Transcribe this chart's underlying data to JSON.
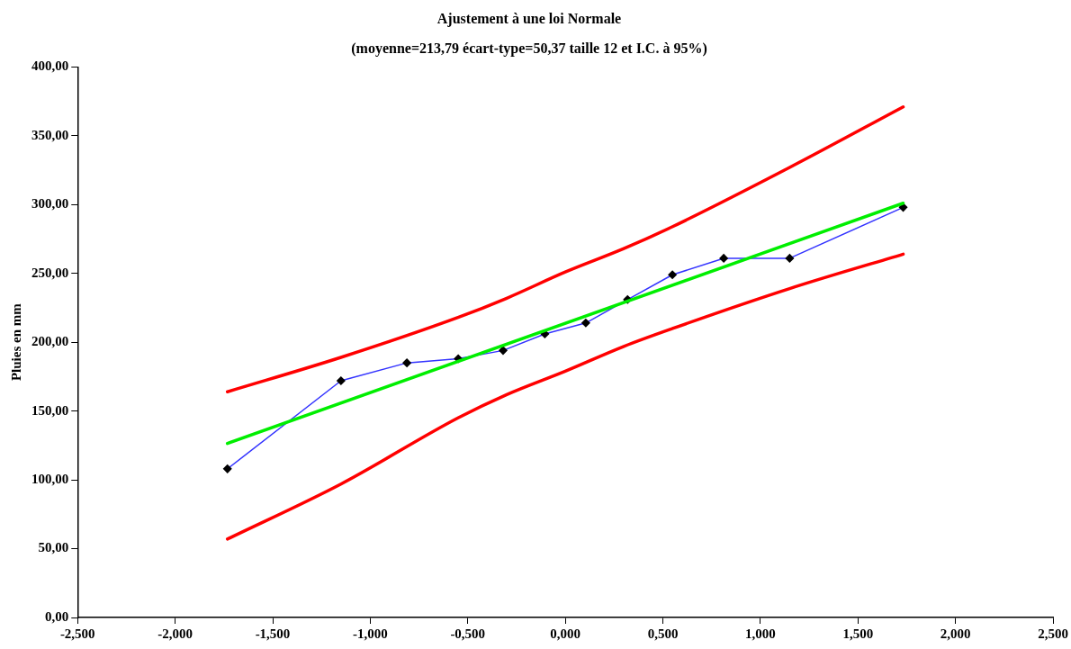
{
  "chart_data": {
    "type": "line",
    "title": "Ajustement à une loi Normale",
    "subtitle": "(moyenne=213,79 écart-type=50,37 taille 12 et I.C. à 95%)",
    "ylabel": "Pluies en mm",
    "xlim": [
      -2.5,
      2.5
    ],
    "ylim": [
      0,
      400
    ],
    "xticks": [
      {
        "value": -2.5,
        "label": "-2,500"
      },
      {
        "value": -2,
        "label": "-2,000"
      },
      {
        "value": -1.5,
        "label": "-1,500"
      },
      {
        "value": -1,
        "label": "-1,000"
      },
      {
        "value": -0.5,
        "label": "-0,500"
      },
      {
        "value": 0,
        "label": "0,000"
      },
      {
        "value": 0.5,
        "label": "0,500"
      },
      {
        "value": 1,
        "label": "1,000"
      },
      {
        "value": 1.5,
        "label": "1,500"
      },
      {
        "value": 2,
        "label": "2,000"
      },
      {
        "value": 2.5,
        "label": "2,500"
      }
    ],
    "yticks": [
      {
        "value": 0,
        "label": "0,00"
      },
      {
        "value": 50,
        "label": "50,00"
      },
      {
        "value": 100,
        "label": "100,00"
      },
      {
        "value": 150,
        "label": "150,00"
      },
      {
        "value": 200,
        "label": "200,00"
      },
      {
        "value": 250,
        "label": "250,00"
      },
      {
        "value": 300,
        "label": "300,00"
      },
      {
        "value": 350,
        "label": "350,00"
      },
      {
        "value": 400,
        "label": "400,00"
      }
    ],
    "grid": false,
    "legend": false,
    "series": [
      {
        "color": "#ff0000",
        "marker": "none",
        "x": [
          -1.732,
          -1.15,
          -0.55,
          -0.3,
          0,
          0.3,
          0.55,
          1.15,
          1.732
        ],
        "values": [
          164,
          189,
          218,
          232,
          251,
          268,
          284,
          327,
          371
        ]
      },
      {
        "color": "#ff0000",
        "marker": "none",
        "x": [
          -1.732,
          -1.15,
          -0.55,
          -0.3,
          0,
          0.3,
          0.55,
          1.15,
          1.732
        ],
        "values": [
          57,
          97,
          145,
          162,
          179,
          197,
          210,
          239,
          264
        ]
      },
      {
        "color": "#00ee00",
        "marker": "none",
        "x": [
          -1.732,
          1.732
        ],
        "values": [
          126.5,
          301
        ]
      },
      {
        "color": "#3333ff",
        "marker": "diamond",
        "x": [
          -1.732,
          -1.15,
          -0.812,
          -0.549,
          -0.319,
          -0.105,
          0.105,
          0.319,
          0.549,
          0.812,
          1.15,
          1.732
        ],
        "values": [
          108,
          172,
          185,
          188,
          194,
          206,
          214,
          231,
          249,
          261,
          261,
          298
        ]
      }
    ]
  }
}
